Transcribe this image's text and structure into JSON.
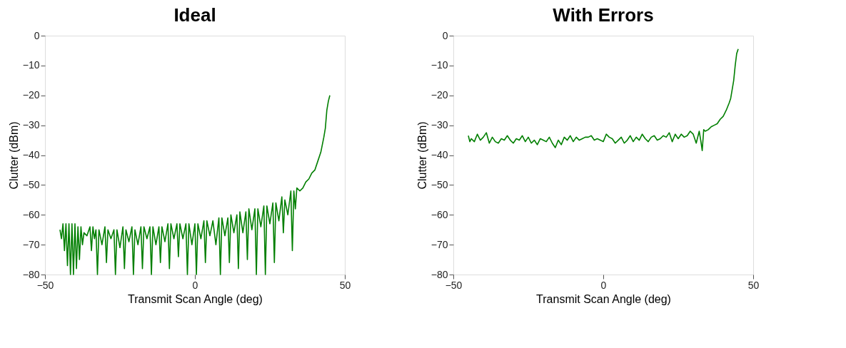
{
  "chart_data": [
    {
      "type": "line",
      "title": "Ideal",
      "xlabel": "Transmit Scan Angle (deg)",
      "ylabel": "Clutter (dBm)",
      "xlim": [
        -50,
        50
      ],
      "ylim": [
        -80,
        0
      ],
      "xticks": [
        -50,
        0,
        50
      ],
      "yticks": [
        -80,
        -70,
        -60,
        -50,
        -40,
        -30,
        -20,
        -10,
        0
      ],
      "grid": false,
      "line_style": "solid",
      "marker": "none",
      "series": [
        {
          "color": "#007f00",
          "x": [
            -45,
            -44.5,
            -44,
            -43.5,
            -43,
            -42.5,
            -42,
            -41.5,
            -41,
            -40.5,
            -40,
            -39.5,
            -39,
            -38.5,
            -38,
            -37.5,
            -37,
            -36,
            -35,
            -34.5,
            -34,
            -33.5,
            -33,
            -32.5,
            -32,
            -31,
            -30,
            -29.5,
            -29,
            -28,
            -27,
            -26.5,
            -26,
            -25,
            -24,
            -23.5,
            -23,
            -22,
            -21,
            -20.5,
            -20,
            -19,
            -18,
            -17.5,
            -17,
            -16,
            -15,
            -14.5,
            -14,
            -13,
            -12,
            -11.5,
            -11,
            -10,
            -9,
            -8.5,
            -8,
            -7,
            -6,
            -5.5,
            -5,
            -4,
            -3,
            -2.5,
            -2,
            -1,
            0,
            0.5,
            1,
            2,
            3,
            3.5,
            4,
            5,
            6,
            7,
            8,
            8.5,
            9,
            10,
            11,
            11.5,
            12,
            13,
            14,
            14.5,
            15,
            16,
            17,
            17.5,
            18,
            19,
            20,
            20.5,
            21,
            22,
            23,
            23.5,
            24,
            25,
            26,
            26.5,
            27,
            28,
            29,
            29.5,
            30,
            31,
            32,
            32.5,
            33,
            33.5,
            34,
            35,
            36,
            37,
            38,
            39,
            40,
            41,
            42,
            43,
            43.5,
            44,
            44.5,
            45
          ],
          "values": [
            -65,
            -68,
            -63,
            -72,
            -63,
            -77,
            -63,
            -80,
            -63,
            -80,
            -63,
            -78,
            -64,
            -75,
            -64,
            -70,
            -66,
            -67,
            -64,
            -72,
            -64,
            -68,
            -65,
            -80,
            -65,
            -70,
            -64,
            -76,
            -65,
            -68,
            -65,
            -80,
            -65,
            -71,
            -64,
            -78,
            -65,
            -69,
            -64,
            -80,
            -65,
            -70,
            -64,
            -78,
            -64,
            -68,
            -64,
            -80,
            -64,
            -70,
            -64,
            -76,
            -64,
            -69,
            -63,
            -78,
            -63,
            -68,
            -63,
            -74,
            -63,
            -68,
            -63,
            -80,
            -63,
            -70,
            -63,
            -80,
            -63,
            -68,
            -62,
            -76,
            -62,
            -67,
            -62,
            -70,
            -61,
            -80,
            -61,
            -67,
            -61,
            -76,
            -60,
            -66,
            -60,
            -78,
            -59,
            -66,
            -59,
            -75,
            -58,
            -65,
            -58,
            -80,
            -58,
            -64,
            -57,
            -80,
            -57,
            -63,
            -56,
            -76,
            -56,
            -62,
            -54,
            -66,
            -55,
            -60,
            -52,
            -72,
            -52,
            -58,
            -51,
            -52,
            -51,
            -49,
            -48,
            -46,
            -45,
            -42,
            -39,
            -34,
            -31,
            -25,
            -22,
            -20
          ]
        }
      ]
    },
    {
      "type": "line",
      "title": "With Errors",
      "xlabel": "Transmit Scan Angle (deg)",
      "ylabel": "Clutter (dBm)",
      "xlim": [
        -50,
        50
      ],
      "ylim": [
        -80,
        0
      ],
      "xticks": [
        -50,
        0,
        50
      ],
      "yticks": [
        -80,
        -70,
        -60,
        -50,
        -40,
        -30,
        -20,
        -10,
        0
      ],
      "grid": false,
      "line_style": "solid",
      "marker": "none",
      "series": [
        {
          "color": "#007f00",
          "x": [
            -45,
            -44.5,
            -44,
            -43,
            -42,
            -41,
            -40,
            -39,
            -38,
            -37,
            -36,
            -35,
            -34,
            -33,
            -32,
            -31,
            -30,
            -29,
            -28,
            -27,
            -26,
            -25,
            -24,
            -23,
            -22,
            -21,
            -20,
            -19,
            -18,
            -17,
            -16,
            -15,
            -14,
            -13,
            -12,
            -11,
            -10,
            -9,
            -8,
            -7,
            -6,
            -5,
            -4,
            -3,
            -2,
            -1,
            0,
            1,
            2,
            3,
            4,
            5,
            6,
            7,
            8,
            9,
            10,
            11,
            12,
            13,
            14,
            15,
            16,
            17,
            18,
            19,
            20,
            21,
            22,
            23,
            24,
            25,
            26,
            27,
            28,
            29,
            30,
            31,
            32,
            32.5,
            33,
            33.5,
            34,
            35,
            36,
            37,
            38,
            39,
            40,
            41,
            42,
            42.5,
            43,
            43.5,
            44,
            44.5,
            45
          ],
          "values": [
            -33.5,
            -35.5,
            -34.5,
            -35.5,
            -33,
            -35,
            -34,
            -32.5,
            -36,
            -34,
            -35.5,
            -36,
            -34.5,
            -35,
            -33.5,
            -35,
            -36,
            -34.5,
            -35,
            -33.5,
            -35.5,
            -34,
            -36,
            -35,
            -36.5,
            -34.5,
            -35,
            -35.5,
            -34,
            -36,
            -37.5,
            -35,
            -36.5,
            -34,
            -35,
            -33.5,
            -35.5,
            -34,
            -35,
            -34.5,
            -34,
            -34,
            -33.5,
            -35,
            -34.5,
            -35,
            -35.5,
            -33,
            -34,
            -34.5,
            -36,
            -35,
            -34,
            -36,
            -35,
            -33.5,
            -35.5,
            -34,
            -35,
            -33,
            -34.5,
            -35.5,
            -34,
            -33.5,
            -35,
            -34.5,
            -33.5,
            -34,
            -32.5,
            -35.5,
            -33,
            -34.5,
            -33,
            -34,
            -33.5,
            -32,
            -33,
            -36,
            -32,
            -35,
            -38.5,
            -31.5,
            -32,
            -31.5,
            -30.5,
            -30,
            -29.5,
            -28,
            -27,
            -25,
            -22.5,
            -21,
            -18,
            -15,
            -10,
            -6,
            -4.5
          ]
        }
      ]
    }
  ]
}
